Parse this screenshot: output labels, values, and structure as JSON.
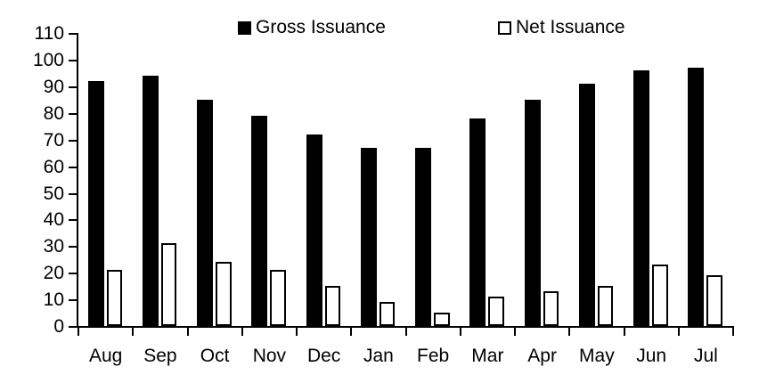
{
  "chart_data": {
    "type": "bar",
    "title": "",
    "xlabel": "",
    "ylabel": "",
    "categories": [
      "Aug",
      "Sep",
      "Oct",
      "Nov",
      "Dec",
      "Jan",
      "Feb",
      "Mar",
      "Apr",
      "May",
      "Jun",
      "Jul"
    ],
    "series": [
      {
        "name": "Gross Issuance",
        "values": [
          92,
          94,
          85,
          79,
          72,
          67,
          67,
          78,
          85,
          91,
          96,
          97
        ],
        "fill": "#000000",
        "outline": "#000000"
      },
      {
        "name": "Net Issuance",
        "values": [
          21,
          31,
          24,
          21,
          15,
          9,
          5,
          11,
          13,
          15,
          23,
          19
        ],
        "fill": "#ffffff",
        "outline": "#000000"
      }
    ],
    "ylim": [
      0,
      110
    ],
    "ytick_step": 10,
    "ytick_labels": [
      "0",
      "10",
      "20",
      "30",
      "40",
      "50",
      "60",
      "70",
      "80",
      "90",
      "100",
      "110"
    ],
    "grid": false,
    "legend_position": "top-center",
    "axis_color": "#000000",
    "background_color": "#ffffff",
    "text_color": "#000000"
  }
}
